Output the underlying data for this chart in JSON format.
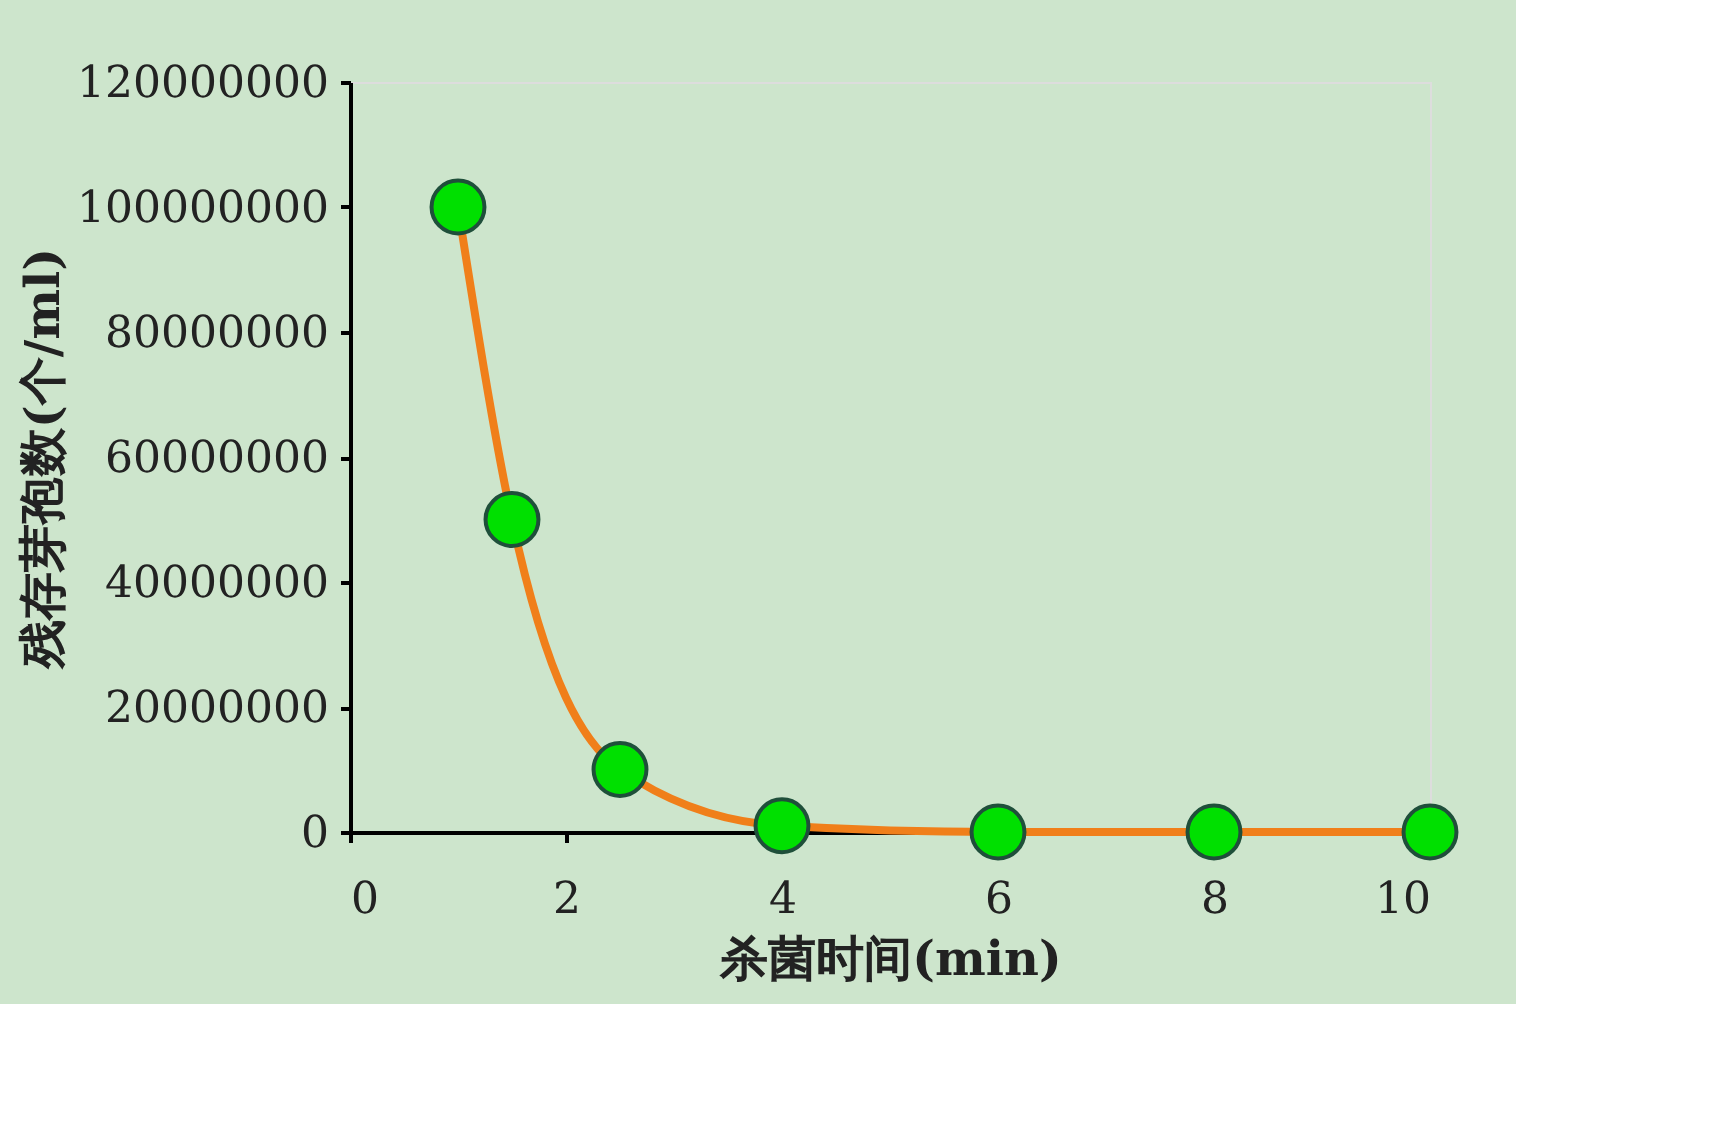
{
  "chart_data": {
    "type": "line",
    "xlabel": "杀菌时间(min)",
    "ylabel": "残存芽孢数(个/ml)",
    "x": [
      1,
      1.5,
      2.5,
      4,
      6,
      8,
      10
    ],
    "series": [
      {
        "color": "#f07f1a",
        "values": [
          100000000,
          50000000,
          10000000,
          1000000,
          0,
          0,
          0
        ]
      }
    ],
    "xlim": [
      0,
      10
    ],
    "xticks": [
      0,
      2,
      4,
      6,
      8,
      10
    ],
    "ylim": [
      0,
      120000000
    ],
    "yticks": [
      0,
      20000000,
      40000000,
      60000000,
      80000000,
      100000000,
      120000000
    ],
    "grid": false,
    "marker": "circle",
    "line_style": "solid"
  }
}
